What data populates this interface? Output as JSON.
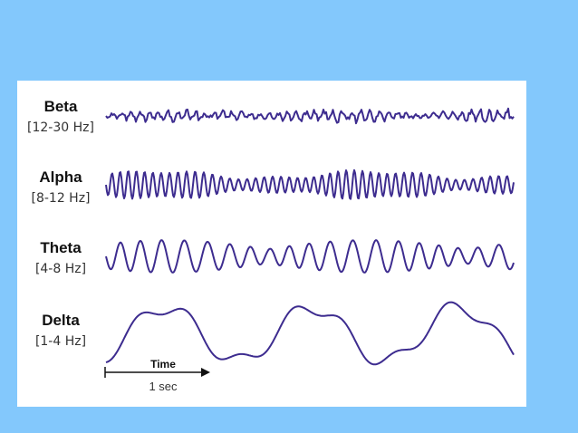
{
  "bands": [
    {
      "name": "Beta",
      "range": "[12-30 Hz]",
      "stroke": "#3d2c8f"
    },
    {
      "name": "Alpha",
      "range": "[8-12 Hz]",
      "stroke": "#3d2c8f"
    },
    {
      "name": "Theta",
      "range": "[4-8 Hz]",
      "stroke": "#3d2c8f"
    },
    {
      "name": "Delta",
      "range": "[1-4 Hz]",
      "stroke": "#3d2c8f"
    }
  ],
  "scale": {
    "time_label": "Time",
    "duration_label": "1 sec"
  },
  "colors": {
    "background": "#83c8fc",
    "panel": "#ffffff",
    "wave": "#3d2c8f"
  }
}
